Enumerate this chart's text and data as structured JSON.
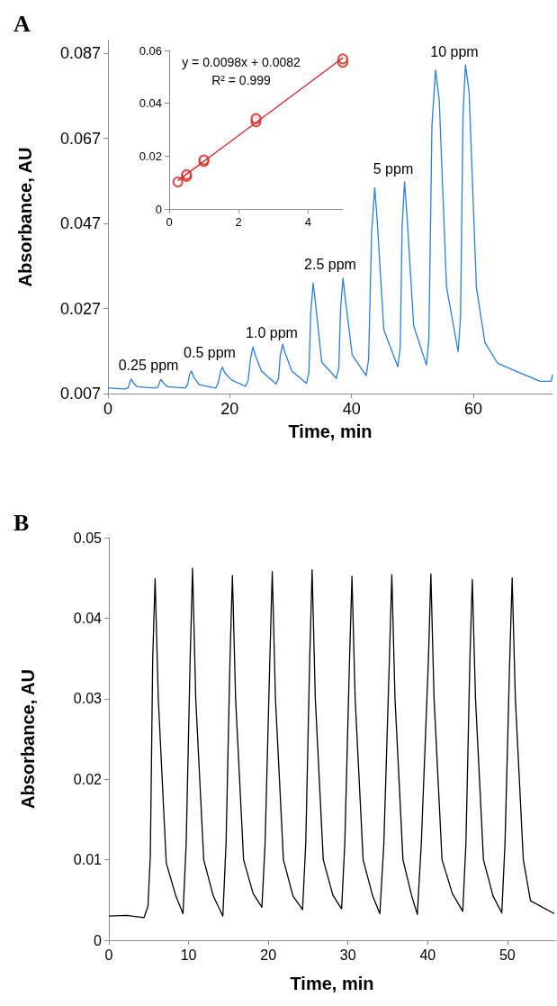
{
  "chart_data": [
    {
      "type": "line",
      "title": "A",
      "xlabel": "Time, min",
      "ylabel": "Absorbance, AU",
      "xlim": [
        0,
        73
      ],
      "xticks": [
        0,
        20,
        40,
        60
      ],
      "ylim": [
        0.007,
        0.09
      ],
      "yticks": [
        0.007,
        0.027,
        0.047,
        0.067,
        0.087
      ],
      "series": [
        {
          "color": "#2a7de1",
          "x": [
            0,
            2.8,
            3.3,
            3.6,
            3.8,
            4.2,
            4.8,
            7.7,
            8.2,
            8.5,
            8.7,
            9.1,
            9.8,
            12.7,
            13.1,
            13.4,
            13.7,
            14.1,
            15.0,
            17.7,
            18.1,
            18.5,
            18.8,
            19.2,
            20.3,
            22.6,
            23.0,
            23.4,
            23.8,
            24.2,
            25.2,
            27.6,
            28.0,
            28.3,
            28.7,
            29.1,
            30.2,
            32.6,
            33.0,
            33.3,
            33.7,
            34.1,
            35.1,
            37.5,
            37.9,
            38.2,
            38.6,
            39.0,
            40.1,
            42.4,
            42.8,
            43.3,
            43.8,
            44.2,
            45.3,
            47.6,
            48.0,
            48.3,
            48.7,
            49.1,
            50.2,
            52.3,
            52.7,
            53.2,
            53.8,
            54.4,
            55.6,
            57.5,
            57.9,
            58.3,
            58.7,
            59.3,
            60.5,
            61.9,
            64.0,
            66.9,
            71.0,
            72.8,
            73
          ],
          "values": [
            0.0083,
            0.0081,
            0.0083,
            0.0097,
            0.0104,
            0.0095,
            0.0086,
            0.0083,
            0.0085,
            0.0098,
            0.0103,
            0.0095,
            0.0086,
            0.0083,
            0.0092,
            0.0115,
            0.0123,
            0.0108,
            0.0091,
            0.0083,
            0.0095,
            0.0122,
            0.0132,
            0.0118,
            0.0102,
            0.0087,
            0.01,
            0.015,
            0.018,
            0.016,
            0.0123,
            0.0093,
            0.0105,
            0.016,
            0.0186,
            0.0165,
            0.0123,
            0.0094,
            0.012,
            0.026,
            0.033,
            0.028,
            0.0144,
            0.0106,
            0.013,
            0.027,
            0.0341,
            0.029,
            0.0161,
            0.0112,
            0.015,
            0.045,
            0.0554,
            0.048,
            0.022,
            0.0133,
            0.018,
            0.046,
            0.0568,
            0.049,
            0.023,
            0.0137,
            0.02,
            0.07,
            0.0831,
            0.076,
            0.032,
            0.0169,
            0.025,
            0.072,
            0.0843,
            0.078,
            0.032,
            0.019,
            0.0141,
            0.0123,
            0.0099,
            0.0099,
            0.0115
          ]
        }
      ],
      "annotations": [
        "0.25 ppm",
        "0.5 ppm",
        "1.0 ppm",
        "2.5 ppm",
        "5 ppm",
        "10 ppm"
      ]
    },
    {
      "type": "scatter",
      "xlim": [
        0,
        5
      ],
      "xticks": [
        0,
        2,
        4
      ],
      "ylim": [
        0,
        0.06
      ],
      "yticks": [
        0,
        0.02,
        0.04,
        0.06
      ],
      "series": [
        {
          "marker": "circle",
          "color": "#d62020",
          "x": [
            0.25,
            0.5,
            0.5,
            1,
            1,
            2.5,
            2.5,
            5,
            5
          ],
          "values": [
            0.0102,
            0.0123,
            0.013,
            0.018,
            0.0186,
            0.033,
            0.0342,
            0.0555,
            0.0568
          ]
        },
        {
          "type": "line",
          "color": "#d62020",
          "x": [
            0.25,
            5
          ],
          "values": [
            0.0107,
            0.0572
          ]
        }
      ],
      "annotations": [
        "y = 0.0098x + 0.0082",
        "R² = 0.999"
      ]
    },
    {
      "type": "line",
      "title": "B",
      "xlabel": "Time, min",
      "ylabel": "Absorbance, AU",
      "xlim": [
        0,
        56
      ],
      "xticks": [
        0,
        10,
        20,
        30,
        40,
        50
      ],
      "ylim": [
        0,
        0.05
      ],
      "yticks": [
        0,
        0.01,
        0.02,
        0.03,
        0.04,
        0.05
      ],
      "series": [
        {
          "color": "#000000",
          "x": [
            0,
            2.2,
            4.4,
            4.9,
            5.2,
            5.5,
            5.8,
            6.2,
            7.2,
            8.4,
            9.3,
            9.7,
            10.2,
            10.5,
            10.9,
            11.9,
            13.1,
            14.3,
            14.7,
            15.2,
            15.5,
            15.9,
            16.9,
            18.1,
            19.2,
            19.6,
            20.2,
            20.5,
            20.9,
            21.9,
            23.1,
            24.3,
            24.7,
            25.2,
            25.5,
            25.9,
            26.9,
            28.1,
            29.2,
            29.6,
            30.2,
            30.5,
            30.9,
            31.9,
            33.1,
            34.0,
            34.5,
            35.2,
            35.5,
            35.9,
            36.9,
            38.0,
            38.7,
            39.2,
            40.1,
            40.4,
            40.8,
            41.8,
            43.1,
            44.4,
            44.8,
            45.3,
            45.6,
            46.0,
            47.0,
            48.2,
            49.3,
            49.7,
            50.3,
            50.6,
            51.0,
            52.0,
            52.9,
            55.9
          ],
          "values": [
            0.003,
            0.0031,
            0.0028,
            0.0042,
            0.0104,
            0.035,
            0.0449,
            0.03,
            0.0096,
            0.0055,
            0.0033,
            0.012,
            0.035,
            0.0462,
            0.03,
            0.01,
            0.0055,
            0.003,
            0.012,
            0.035,
            0.0453,
            0.03,
            0.01,
            0.0058,
            0.0041,
            0.012,
            0.035,
            0.0458,
            0.03,
            0.01,
            0.0055,
            0.0038,
            0.012,
            0.035,
            0.046,
            0.03,
            0.01,
            0.0056,
            0.0039,
            0.012,
            0.035,
            0.0452,
            0.03,
            0.01,
            0.0055,
            0.0033,
            0.012,
            0.035,
            0.0454,
            0.03,
            0.01,
            0.0055,
            0.0032,
            0.012,
            0.035,
            0.0455,
            0.03,
            0.01,
            0.0058,
            0.0036,
            0.012,
            0.035,
            0.0448,
            0.03,
            0.01,
            0.0055,
            0.0034,
            0.012,
            0.035,
            0.045,
            0.03,
            0.01,
            0.0049,
            0.0033
          ]
        }
      ]
    }
  ]
}
